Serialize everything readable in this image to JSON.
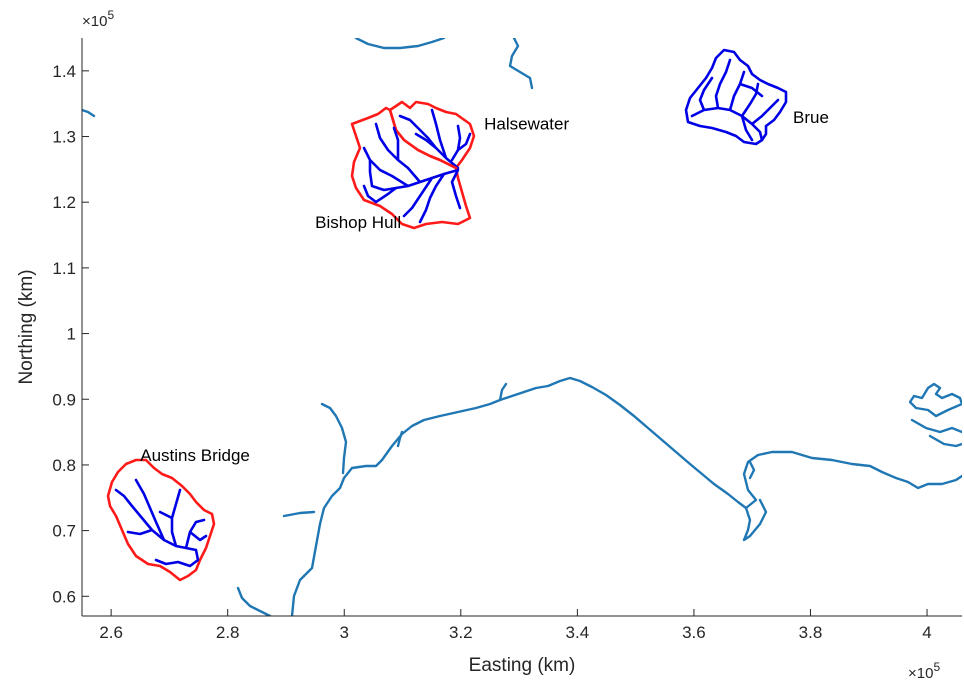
{
  "figure": {
    "xlabel": "Easting (km)",
    "ylabel": "Northing (km)",
    "x_exponent_base": "×10",
    "x_exponent_power": "5",
    "y_exponent_base": "×10",
    "y_exponent_power": "5"
  },
  "chart_data": {
    "type": "map",
    "xlabel": "Easting (km)",
    "ylabel": "Northing (km)",
    "xlim": [
      2.55,
      4.06
    ],
    "ylim": [
      0.57,
      1.45
    ],
    "x_ticks": [
      "2.6",
      "2.8",
      "3",
      "3.2",
      "3.4",
      "3.6",
      "3.8",
      "4"
    ],
    "x_tick_values": [
      2.6,
      2.8,
      3.0,
      3.2,
      3.4,
      3.6,
      3.8,
      4.0
    ],
    "y_ticks": [
      "0.6",
      "0.7",
      "0.8",
      "0.9",
      "1",
      "1.1",
      "1.2",
      "1.3",
      "1.4"
    ],
    "y_tick_values": [
      0.6,
      0.7,
      0.8,
      0.9,
      1.0,
      1.1,
      1.2,
      1.3,
      1.4
    ],
    "grid": false,
    "colors": {
      "coastline": "#1f77b4",
      "catchment_boundary": "#ff1a1a",
      "river_network": "#0000e6"
    },
    "catchments": [
      {
        "name": "Halsewater",
        "label_x": 3.24,
        "label_y": 1.32,
        "boundary_drawn": true
      },
      {
        "name": "Bishop Hull",
        "label_x": 2.95,
        "label_y": 1.17,
        "boundary_drawn": true
      },
      {
        "name": "Brue",
        "label_x": 3.77,
        "label_y": 1.33,
        "boundary_drawn": false
      },
      {
        "name": "Austins Bridge",
        "label_x": 2.65,
        "label_y": 0.815,
        "boundary_drawn": true
      }
    ]
  }
}
